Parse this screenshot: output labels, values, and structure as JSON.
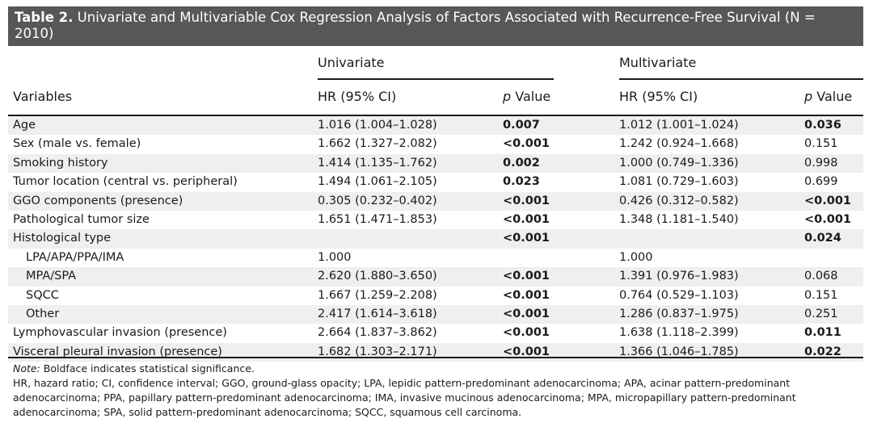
{
  "caption": {
    "label": "Table 2.",
    "text": "Univariate and Multivariable Cox Regression Analysis of Factors Associated with Recurrence-Free Survival (N = 2010)"
  },
  "headers": {
    "group_univariate": "Univariate",
    "group_multivariate": "Multivariate",
    "variables": "Variables",
    "hr_ci": "HR (95% CI)",
    "p_italic": "p",
    "p_value": "Value"
  },
  "rows": [
    {
      "variable": "Age",
      "hr_uni": "1.016 (1.004–1.028)",
      "p_uni": "0.007",
      "hr_multi": "1.012 (1.001–1.024)",
      "p_multi": "0.036",
      "p_multi_bold": true,
      "indent": false
    },
    {
      "variable": "Sex (male vs. female)",
      "hr_uni": "1.662 (1.327–2.082)",
      "p_uni": "<0.001",
      "hr_multi": "1.242 (0.924–1.668)",
      "p_multi": "0.151",
      "p_multi_bold": false,
      "indent": false
    },
    {
      "variable": "Smoking history",
      "hr_uni": "1.414 (1.135–1.762)",
      "p_uni": "0.002",
      "hr_multi": "1.000 (0.749–1.336)",
      "p_multi": "0.998",
      "p_multi_bold": false,
      "indent": false
    },
    {
      "variable": "Tumor location (central vs. peripheral)",
      "hr_uni": "1.494 (1.061–2.105)",
      "p_uni": "0.023",
      "hr_multi": "1.081 (0.729–1.603)",
      "p_multi": "0.699",
      "p_multi_bold": false,
      "indent": false
    },
    {
      "variable": "GGO components (presence)",
      "hr_uni": "0.305 (0.232–0.402)",
      "p_uni": "<0.001",
      "hr_multi": "0.426 (0.312–0.582)",
      "p_multi": "<0.001",
      "p_multi_bold": true,
      "indent": false
    },
    {
      "variable": "Pathological tumor size",
      "hr_uni": "1.651 (1.471–1.853)",
      "p_uni": "<0.001",
      "hr_multi": "1.348 (1.181–1.540)",
      "p_multi": "<0.001",
      "p_multi_bold": true,
      "indent": false
    },
    {
      "variable": "Histological type",
      "hr_uni": "",
      "p_uni": "<0.001",
      "hr_multi": "",
      "p_multi": "0.024",
      "p_multi_bold": true,
      "indent": false
    },
    {
      "variable": "LPA/APA/PPA/IMA",
      "hr_uni": "1.000",
      "p_uni": "",
      "hr_multi": "1.000",
      "p_multi": "",
      "p_multi_bold": false,
      "indent": true
    },
    {
      "variable": "MPA/SPA",
      "hr_uni": "2.620 (1.880–3.650)",
      "p_uni": "<0.001",
      "hr_multi": "1.391 (0.976–1.983)",
      "p_multi": "0.068",
      "p_multi_bold": false,
      "indent": true
    },
    {
      "variable": "SQCC",
      "hr_uni": "1.667 (1.259–2.208)",
      "p_uni": "<0.001",
      "hr_multi": "0.764 (0.529–1.103)",
      "p_multi": "0.151",
      "p_multi_bold": false,
      "indent": true
    },
    {
      "variable": "Other",
      "hr_uni": "2.417 (1.614–3.618)",
      "p_uni": "<0.001",
      "hr_multi": "1.286 (0.837–1.975)",
      "p_multi": "0.251",
      "p_multi_bold": false,
      "indent": true
    },
    {
      "variable": "Lymphovascular invasion (presence)",
      "hr_uni": "2.664 (1.837–3.862)",
      "p_uni": "<0.001",
      "hr_multi": "1.638 (1.118–2.399)",
      "p_multi": "0.011",
      "p_multi_bold": true,
      "indent": false
    },
    {
      "variable": "Visceral pleural invasion (presence)",
      "hr_uni": "1.682 (1.303–2.171)",
      "p_uni": "<0.001",
      "hr_multi": "1.366 (1.046–1.785)",
      "p_multi": "0.022",
      "p_multi_bold": true,
      "indent": false
    }
  ],
  "notes": {
    "note_label": "Note:",
    "note_text": " Boldface indicates statistical significance.",
    "abbreviations": "HR, hazard ratio; CI, confidence interval; GGO, ground-glass opacity; LPA, lepidic pattern-predominant adenocarcinoma; APA, acinar pattern-predominant adenocarcinoma; PPA, papillary pattern-predominant adenocarcinoma; IMA, invasive mucinous adenocarcinoma; MPA, micropapillary pattern-predominant adenocarcinoma; SPA, solid pattern-predominant adenocarcinoma; SQCC, squamous cell carcinoma."
  }
}
